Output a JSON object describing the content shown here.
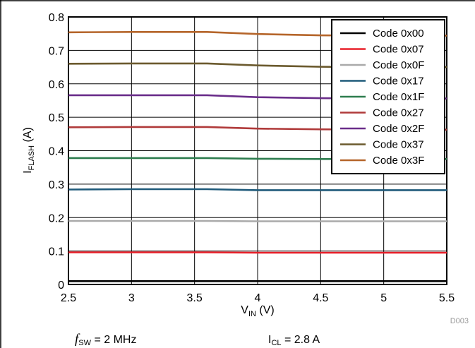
{
  "chart_data": {
    "type": "line",
    "xlabel": {
      "main": "V",
      "sub": "IN",
      "suffix": " (V)"
    },
    "ylabel": {
      "main": "I",
      "sub": "FLASH",
      "suffix": " (A)"
    },
    "xlim": [
      2.5,
      5.5
    ],
    "ylim": [
      0,
      0.8
    ],
    "x_ticks": [
      "2.5",
      "3",
      "3.5",
      "4",
      "4.5",
      "5",
      "5.5"
    ],
    "y_ticks": [
      "0",
      "0.1",
      "0.2",
      "0.3",
      "0.4",
      "0.5",
      "0.6",
      "0.7",
      "0.8"
    ],
    "grid": true,
    "legend_position": "top-right",
    "x": [
      2.5,
      3.0,
      3.5,
      3.6,
      4.0,
      4.5,
      5.0,
      5.5
    ],
    "series": [
      {
        "name": "Code 0x00",
        "color": "#000000",
        "values": [
          0.01,
          0.01,
          0.01,
          0.01,
          0.01,
          0.01,
          0.01,
          0.01
        ]
      },
      {
        "name": "Code 0x07",
        "color": "#e8202a",
        "values": [
          0.096,
          0.096,
          0.096,
          0.096,
          0.095,
          0.095,
          0.095,
          0.095
        ]
      },
      {
        "name": "Code 0x0F",
        "color": "#aaaaaa",
        "values": [
          0.19,
          0.19,
          0.19,
          0.19,
          0.189,
          0.189,
          0.189,
          0.189
        ]
      },
      {
        "name": "Code 0x17",
        "color": "#1f5a7a",
        "values": [
          0.284,
          0.285,
          0.285,
          0.285,
          0.282,
          0.282,
          0.282,
          0.282
        ]
      },
      {
        "name": "Code 0x1F",
        "color": "#2e7d4f",
        "values": [
          0.378,
          0.378,
          0.378,
          0.378,
          0.376,
          0.375,
          0.375,
          0.375
        ]
      },
      {
        "name": "Code 0x27",
        "color": "#b03a3a",
        "values": [
          0.47,
          0.471,
          0.471,
          0.471,
          0.466,
          0.464,
          0.463,
          0.463
        ]
      },
      {
        "name": "Code 0x2F",
        "color": "#6a2d8a",
        "values": [
          0.566,
          0.566,
          0.566,
          0.566,
          0.56,
          0.557,
          0.556,
          0.556
        ]
      },
      {
        "name": "Code 0x37",
        "color": "#6b5a2e",
        "values": [
          0.66,
          0.661,
          0.661,
          0.661,
          0.655,
          0.651,
          0.65,
          0.65
        ]
      },
      {
        "name": "Code 0x3F",
        "color": "#b5652a",
        "values": [
          0.754,
          0.755,
          0.755,
          0.755,
          0.749,
          0.745,
          0.744,
          0.744
        ]
      }
    ],
    "code": "D003"
  },
  "footer": {
    "fsw": {
      "italic": "f",
      "sub": "SW",
      "value": " = 2 MHz"
    },
    "icl": {
      "main": "I",
      "sub": "CL",
      "value": " = 2.8 A"
    }
  }
}
